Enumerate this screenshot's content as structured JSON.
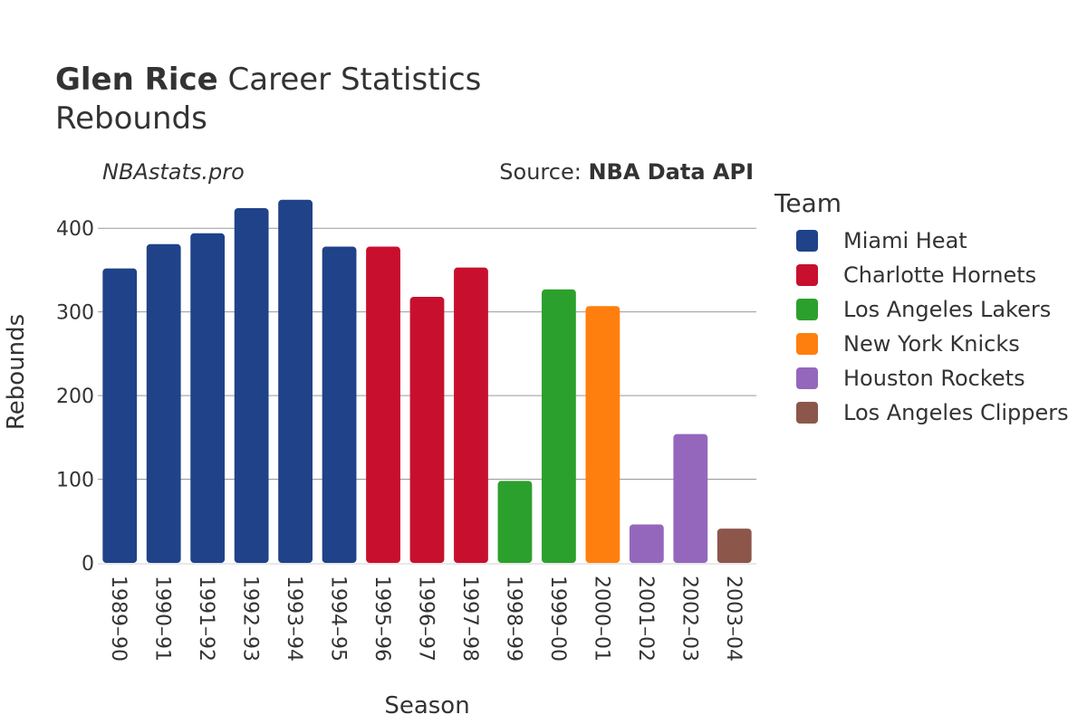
{
  "header": {
    "player": "Glen Rice",
    "title_rest": "Career Statistics",
    "subtitle": "Rebounds",
    "credit": "NBAstats.pro",
    "source_prefix": "Source: ",
    "source_name": "NBA Data API"
  },
  "legend": {
    "title": "Team",
    "items": [
      {
        "label": "Miami Heat",
        "color": "#1f4289"
      },
      {
        "label": "Charlotte Hornets",
        "color": "#c8102e"
      },
      {
        "label": "Los Angeles Lakers",
        "color": "#2ca02c"
      },
      {
        "label": "New York Knicks",
        "color": "#ff7f0e"
      },
      {
        "label": "Houston Rockets",
        "color": "#9467bd"
      },
      {
        "label": "Los Angeles Clippers",
        "color": "#8c564b"
      }
    ]
  },
  "chart_data": {
    "type": "bar",
    "title": "Glen Rice Career Statistics",
    "subtitle": "Rebounds",
    "xlabel": "Season",
    "ylabel": "Rebounds",
    "ylim": [
      0,
      450
    ],
    "yticks": [
      0,
      100,
      200,
      300,
      400
    ],
    "grid": true,
    "legend_position": "right",
    "categories": [
      "1989–90",
      "1990–91",
      "1991–92",
      "1992–93",
      "1993–94",
      "1994–95",
      "1995–96",
      "1996–97",
      "1997–98",
      "1998–99",
      "1999–00",
      "2000–01",
      "2001–02",
      "2002–03",
      "2003–04"
    ],
    "values": [
      352,
      381,
      394,
      424,
      434,
      378,
      378,
      318,
      353,
      98,
      327,
      307,
      46,
      154,
      41
    ],
    "teams": [
      "Miami Heat",
      "Miami Heat",
      "Miami Heat",
      "Miami Heat",
      "Miami Heat",
      "Miami Heat",
      "Charlotte Hornets",
      "Charlotte Hornets",
      "Charlotte Hornets",
      "Los Angeles Lakers",
      "Los Angeles Lakers",
      "New York Knicks",
      "Houston Rockets",
      "Houston Rockets",
      "Los Angeles Clippers"
    ]
  }
}
